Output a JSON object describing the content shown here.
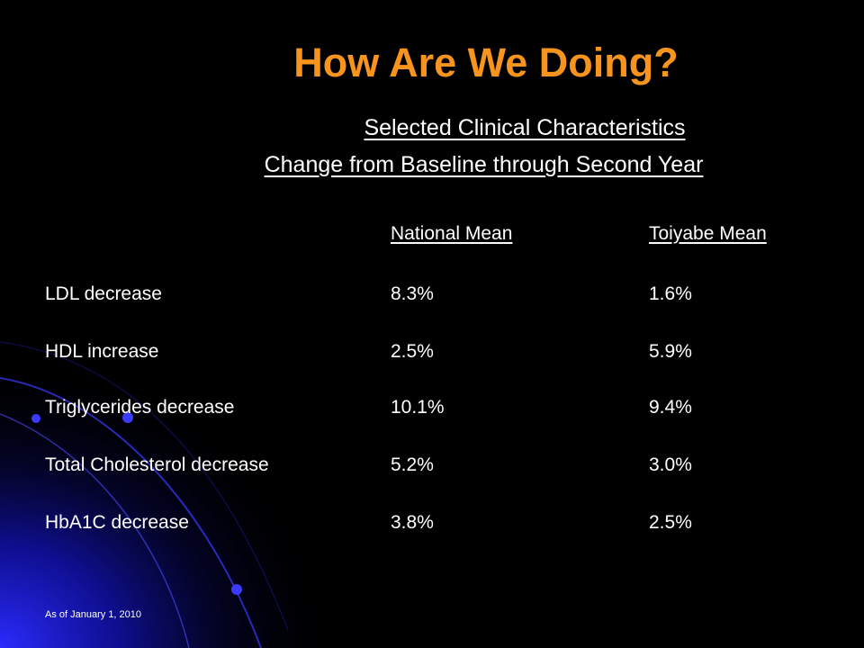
{
  "slide": {
    "title": "How Are We Doing?",
    "subtitle_line1": "Selected Clinical Characteristics",
    "subtitle_line2": "Change from Baseline through Second Year",
    "footnote": "As of January 1, 2010"
  },
  "colors": {
    "title": "#F7941D",
    "background": "#000000",
    "glow": "#1a1aff",
    "text": "#ffffff"
  },
  "table": {
    "headers": [
      "",
      "National Mean",
      "Toiyabe Mean"
    ],
    "rows": [
      {
        "label": "LDL decrease",
        "national": "8.3%",
        "toiyabe": "1.6%"
      },
      {
        "label": "HDL increase",
        "national": "2.5%",
        "toiyabe": "5.9%"
      },
      {
        "label": "Triglycerides decrease",
        "national": "10.1%",
        "toiyabe": "9.4%"
      },
      {
        "label": "Total Cholesterol decrease",
        "national": "5.2%",
        "toiyabe": "3.0%"
      },
      {
        "label": "HbA1C decrease",
        "national": "3.8%",
        "toiyabe": "2.5%"
      }
    ]
  }
}
